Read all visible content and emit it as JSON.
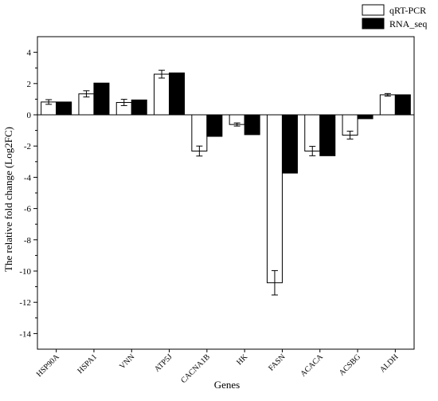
{
  "chart_data": {
    "type": "bar",
    "xlabel": "Genes",
    "ylabel": "The relative fold change (Log2FC)",
    "ylim": [
      -15,
      5
    ],
    "yticks": [
      -14,
      -12,
      -10,
      -8,
      -6,
      -4,
      -2,
      0,
      2,
      4
    ],
    "grid": false,
    "legend_position": "top-right",
    "categories": [
      "HSP90A",
      "HSPA1",
      "VNN",
      "ATP5J",
      "CACNA1B",
      "HK",
      "FASN",
      "ACACA",
      "ACSBG",
      "ALDH"
    ],
    "series": [
      {
        "name": "qRT-PCR",
        "fill": "#ffffff",
        "values": [
          0.82,
          1.34,
          0.79,
          2.6,
          -2.32,
          -0.62,
          -10.75,
          -2.32,
          -1.3,
          1.28
        ],
        "errors": [
          0.15,
          0.2,
          0.2,
          0.25,
          0.32,
          0.1,
          0.78,
          0.3,
          0.25,
          0.08
        ]
      },
      {
        "name": "RNA_seq",
        "fill": "#000000",
        "values": [
          0.82,
          2.03,
          0.95,
          2.68,
          -1.38,
          -1.27,
          -3.73,
          -2.62,
          -0.25,
          1.28
        ]
      }
    ]
  }
}
